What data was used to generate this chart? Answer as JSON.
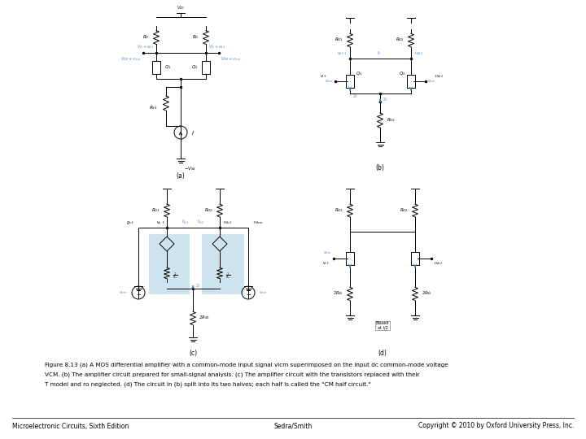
{
  "caption_line1": "Figure 8.13 (a) A MOS differential amplifier with a common-mode input signal vicm superimposed on the input dc common-mode voltage",
  "caption_line2": "VCM. (b) The amplifier circuit prepared for small-signal analysis. (c) The amplifier circuit with the transistors replaced with their",
  "caption_line3": "T model and ro neglected. (d) The circuit in (b) split into its two halves; each half is called the \"CM half circuit.\"",
  "footer_left": "Microelectronic Circuits, Sixth Edition",
  "footer_center": "Sedra/Smith",
  "footer_right": "Copyright © 2010 by Oxford University Press, Inc.",
  "bg_color": "#ffffff",
  "text_color": "#000000",
  "blue_highlight": "#b8d8e8",
  "circuit_color": "#000000",
  "label_color": "#5580bb",
  "lw": 0.7,
  "fs_label": 4.0,
  "fs_caption": 5.2,
  "fs_footer": 5.5,
  "fs_sublabel": 5.5
}
